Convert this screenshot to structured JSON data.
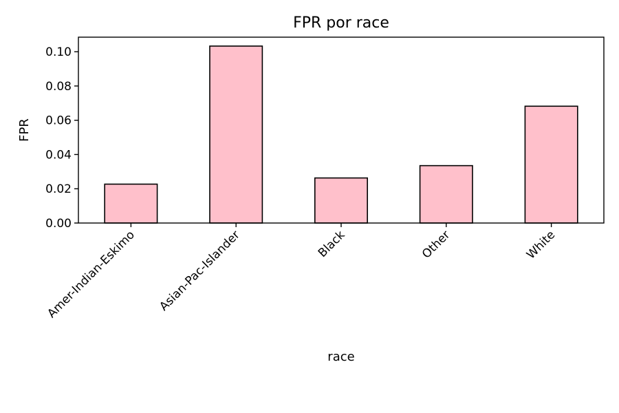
{
  "chart_data": {
    "type": "bar",
    "title": "FPR por race",
    "xlabel": "race",
    "ylabel": "FPR",
    "categories": [
      "Amer-Indian-Eskimo",
      "Asian-Pac-Islander",
      "Black",
      "Other",
      "White"
    ],
    "values": [
      0.0227,
      0.1033,
      0.0263,
      0.0335,
      0.0682
    ],
    "ylim": [
      0,
      0.1085
    ],
    "yticks": [
      "0.00",
      "0.02",
      "0.04",
      "0.06",
      "0.08",
      "0.10"
    ],
    "grid": false,
    "legend": false,
    "bar_color": "#ffc0cb",
    "edge_color": "#000000"
  }
}
